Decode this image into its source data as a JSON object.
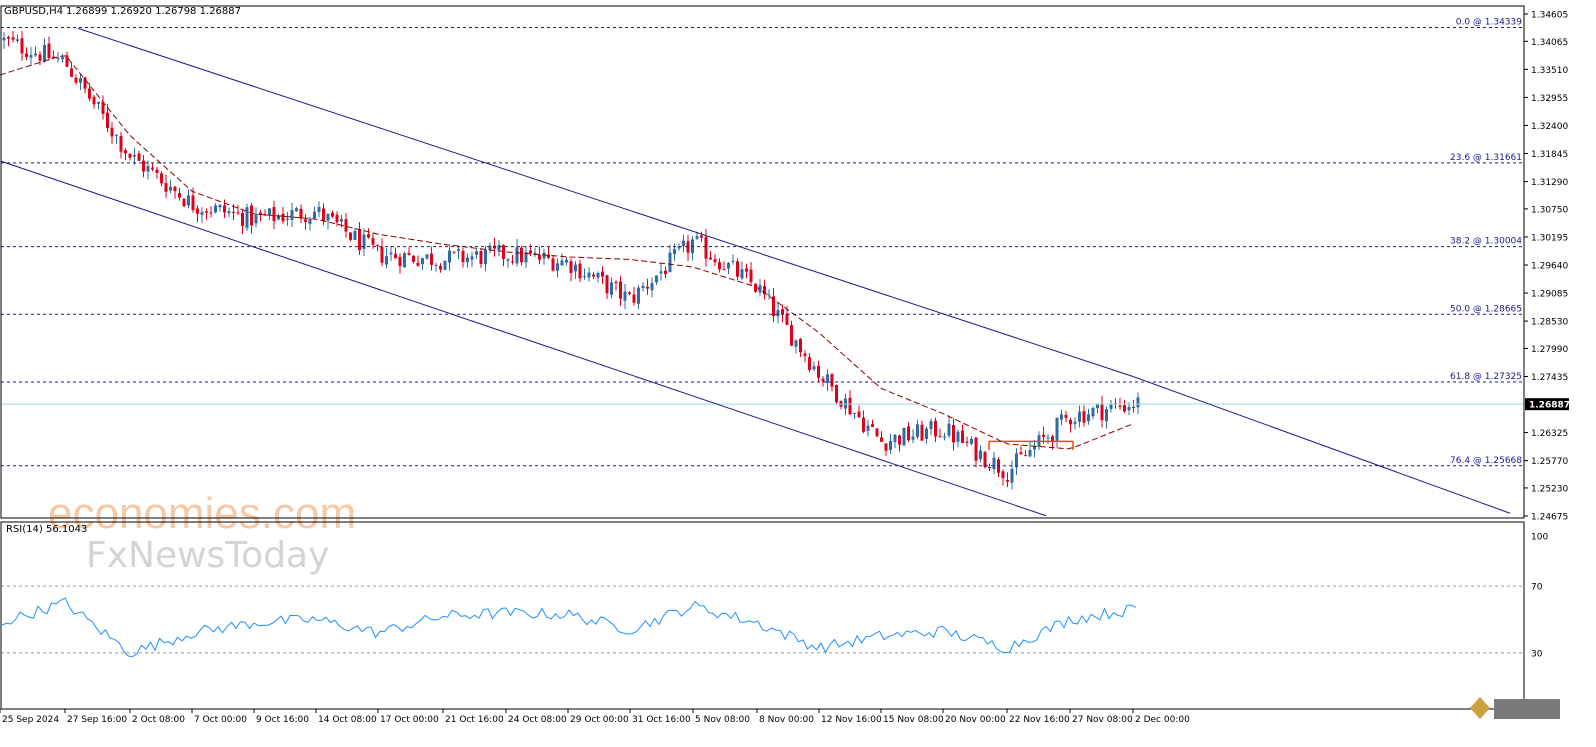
{
  "header": {
    "symbol": "GBPUSD,H4",
    "ohlc": "1.26899 1.26920 1.26798 1.26887"
  },
  "colors": {
    "bull": "#2e6ca4",
    "bear": "#e0001b",
    "fib_line": "#1a1a8c",
    "channel": "#1a1a8c",
    "moving_average": "#8b0000",
    "rsi": "#1e90ff",
    "price_line": "#99d6ea",
    "resistance": "#ff4500"
  },
  "price_axis_labels": [
    "1.34605",
    "1.34065",
    "1.33510",
    "1.32955",
    "1.32400",
    "1.31845",
    "1.31290",
    "1.30750",
    "1.30195",
    "1.29640",
    "1.29085",
    "1.28530",
    "1.27990",
    "1.27435",
    "1.26325",
    "1.25770",
    "1.25230",
    "1.24675"
  ],
  "current_price_label": "1.26887",
  "fib_levels": [
    {
      "label": "0.0 @ 1.34339",
      "price": 1.34339
    },
    {
      "label": "23.6 @ 1.31661",
      "price": 1.31661
    },
    {
      "label": "38.2 @ 1.30004",
      "price": 1.30004
    },
    {
      "label": "50.0 @ 1.28665",
      "price": 1.28665
    },
    {
      "label": "61.8 @ 1.27325",
      "price": 1.27325
    },
    {
      "label": "76.4 @ 1.25668",
      "price": 1.25668
    }
  ],
  "time_axis_labels": [
    "25 Sep 2024",
    "27 Sep 16:00",
    "2 Oct 08:00",
    "7 Oct 00:00",
    "9 Oct 16:00",
    "14 Oct 08:00",
    "17 Oct 00:00",
    "21 Oct 16:00",
    "24 Oct 08:00",
    "29 Oct 00:00",
    "31 Oct 16:00",
    "5 Nov 08:00",
    "8 Nov 00:00",
    "12 Nov 16:00",
    "15 Nov 08:00",
    "20 Nov 00:00",
    "22 Nov 16:00",
    "27 Nov 08:00",
    "2 Dec 00:00"
  ],
  "rsi": {
    "label": "RSI(14) 56.1043",
    "value": 56.1043,
    "levels": [
      "100",
      "70",
      "30",
      "0"
    ]
  },
  "watermark": {
    "line1": "economies.com",
    "line2": "FxNewsToday"
  },
  "chart_data": {
    "type": "line",
    "title": "GBPUSD,H4",
    "note": "Candlestick chart (H4) with descending channel, Fibonacci retracement levels, moving average and RSI(14) sub-panel",
    "x": [
      "25 Sep 2024",
      "27 Sep 16:00",
      "2 Oct 08:00",
      "7 Oct 00:00",
      "9 Oct 16:00",
      "14 Oct 08:00",
      "17 Oct 00:00",
      "21 Oct 16:00",
      "24 Oct 08:00",
      "29 Oct 00:00",
      "31 Oct 16:00",
      "5 Nov 08:00",
      "8 Nov 00:00",
      "12 Nov 16:00",
      "15 Nov 08:00",
      "20 Nov 00:00",
      "22 Nov 16:00",
      "27 Nov 08:00",
      "2 Dec 00:00"
    ],
    "series": [
      {
        "values": [
          1.341,
          1.3365,
          1.318,
          1.3085,
          1.3055,
          1.307,
          1.2985,
          1.2975,
          1.2985,
          1.297,
          1.2895,
          1.301,
          1.292,
          1.275,
          1.2615,
          1.264,
          1.2555,
          1.2665,
          1.269
        ]
      },
      {
        "values": [
          1.334,
          1.338,
          1.322,
          1.311,
          1.3065,
          1.3055,
          1.3025,
          1.3005,
          1.299,
          1.298,
          1.2975,
          1.296,
          1.292,
          1.283,
          1.272,
          1.267,
          1.261,
          1.26,
          1.265
        ]
      },
      {
        "values": [
          48,
          60,
          30,
          42,
          48,
          50,
          42,
          52,
          54,
          53,
          44,
          58,
          48,
          33,
          40,
          43,
          33,
          50,
          56.1
        ]
      }
    ],
    "ylim": [
      1.24675,
      1.34605
    ],
    "rsi_ylim": [
      0,
      100
    ],
    "grid": false,
    "legend": "none"
  }
}
